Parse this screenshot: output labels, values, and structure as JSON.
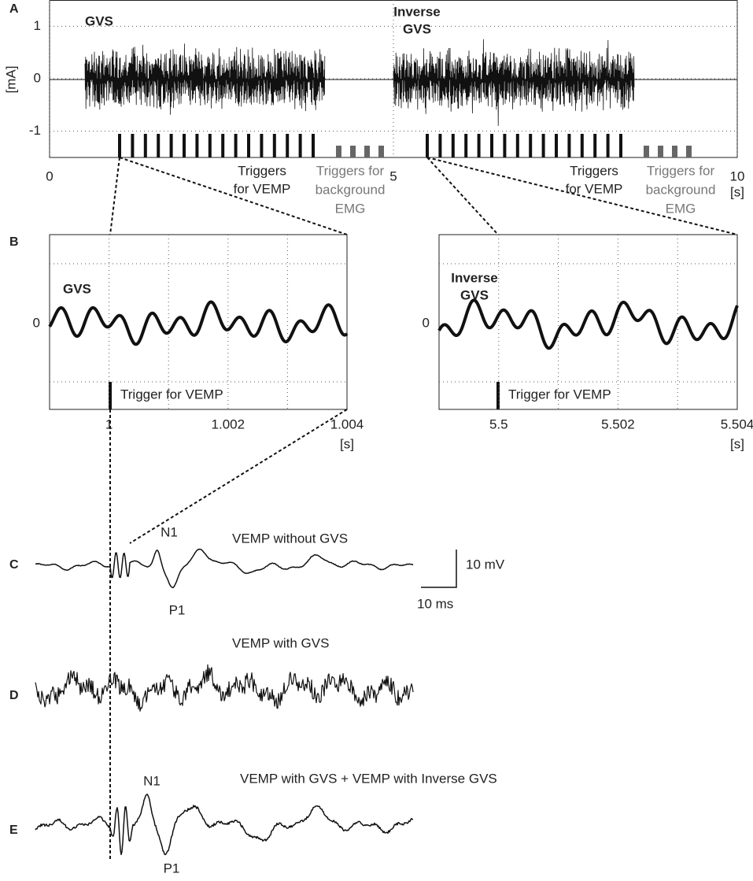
{
  "panel_a": {
    "label": "A",
    "y_axis_label": "[mA]",
    "ylim": [
      -1.5,
      1.5
    ],
    "yticks": [
      1,
      0,
      -1
    ],
    "xlim": [
      0,
      10
    ],
    "xticks": [
      0,
      5,
      10
    ],
    "x_unit": "[s]",
    "gvs": "GVS",
    "inverse_gvs": [
      "Inverse",
      "GVS"
    ],
    "triggers_vemp_1": [
      "Triggers",
      "for VEMP"
    ],
    "triggers_bg_1": [
      "Triggers for",
      "background",
      "EMG"
    ],
    "triggers_vemp_2": [
      "Triggers",
      "for VEMP"
    ],
    "triggers_bg_2": [
      "Triggers for",
      "background",
      "EMG"
    ]
  },
  "panel_b": {
    "label": "B",
    "left": {
      "xlim": [
        0.999,
        1.004
      ],
      "xticks": [
        1,
        1.002,
        1.004
      ],
      "yticks": [
        0
      ],
      "x_unit": "[s]",
      "signal": [
        "GVS"
      ],
      "trigger": "Trigger for VEMP"
    },
    "right": {
      "xlim": [
        5.499,
        5.504
      ],
      "xticks": [
        5.5,
        5.502,
        5.504
      ],
      "yticks": [
        0
      ],
      "x_unit": "[s]",
      "signal": [
        "Inverse",
        "GVS"
      ],
      "trigger": "Trigger for VEMP"
    }
  },
  "panel_c": {
    "label": "C",
    "title": "VEMP without GVS",
    "n1": "N1",
    "p1": "P1",
    "scale_y": "10 mV",
    "scale_x": "10 ms"
  },
  "panel_d": {
    "label": "D",
    "title": "VEMP with GVS"
  },
  "panel_e": {
    "label": "E",
    "title": "VEMP  with GVS + VEMP with Inverse GVS",
    "n1": "N1",
    "p1": "P1"
  }
}
